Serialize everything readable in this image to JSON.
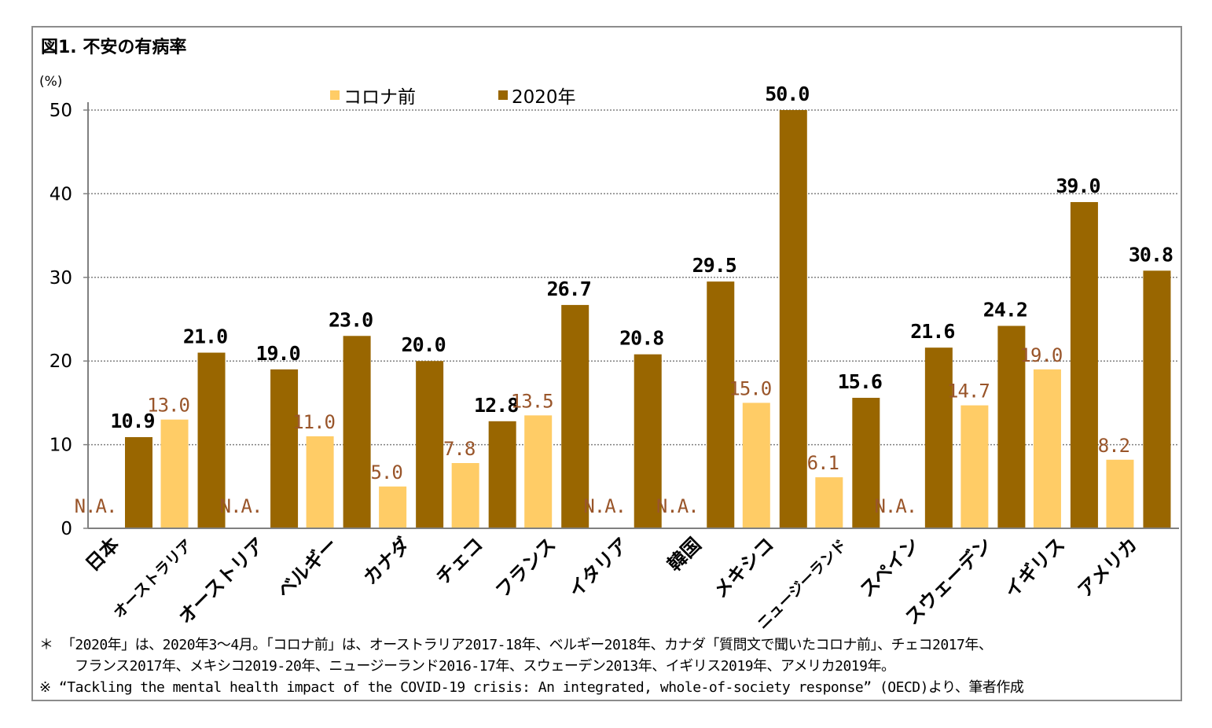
{
  "title": "図1. 不安の有病率",
  "unit": "(%)",
  "colors": {
    "pre": "#ffcc66",
    "y2020": "#996600",
    "pre_label": "#99552a",
    "y2020_label": "#000000",
    "grid": "#808080"
  },
  "chart_data": {
    "type": "bar",
    "ylim": [
      0,
      50
    ],
    "yticks": [
      0,
      10,
      20,
      30,
      40,
      50
    ],
    "grid": true,
    "legend_position": "top",
    "categories": [
      "日本",
      "オーストラリア",
      "オーストリア",
      "ベルギー",
      "カナダ",
      "チェコ",
      "フランス",
      "イタリア",
      "韓国",
      "メキシコ",
      "ニュージーランド",
      "スペイン",
      "スウェーデン",
      "イギリス",
      "アメリカ"
    ],
    "series": [
      {
        "name": "コロナ前",
        "values": [
          null,
          13.0,
          null,
          11.0,
          5.0,
          7.8,
          13.5,
          null,
          null,
          15.0,
          6.1,
          null,
          14.7,
          19.0,
          8.2
        ],
        "labels": [
          "N.A.",
          "13.0",
          "N.A.",
          "11.0",
          "5.0",
          "7.8",
          "13.5",
          "N.A.",
          "N.A.",
          "15.0",
          "6.1",
          "N.A.",
          "14.7",
          "19.0",
          "8.2"
        ]
      },
      {
        "name": "2020年",
        "values": [
          10.9,
          21.0,
          19.0,
          23.0,
          20.0,
          12.8,
          26.7,
          20.8,
          29.5,
          50.0,
          15.6,
          21.6,
          24.2,
          39.0,
          30.8
        ],
        "labels": [
          "10.9",
          "21.0",
          "19.0",
          "23.0",
          "20.0",
          "12.8",
          "26.7",
          "20.8",
          "29.5",
          "50.0",
          "15.6",
          "21.6",
          "24.2",
          "39.0",
          "30.8"
        ]
      }
    ]
  },
  "notes": {
    "line1": "＊ 「2020年」は、2020年3～4月。「コロナ前」は、オーストラリア2017-18年、ベルギー2018年、カナダ「質問文で聞いたコロナ前」、チェコ2017年、",
    "line2": "フランス2017年、メキシコ2019-20年、ニュージーランド2016-17年、スウェーデン2013年、イギリス2019年、アメリカ2019年。",
    "line3": "※ “Tackling the mental health impact of the COVID-19 crisis: An integrated, whole-of-society response” (OECD)より、筆者作成"
  }
}
